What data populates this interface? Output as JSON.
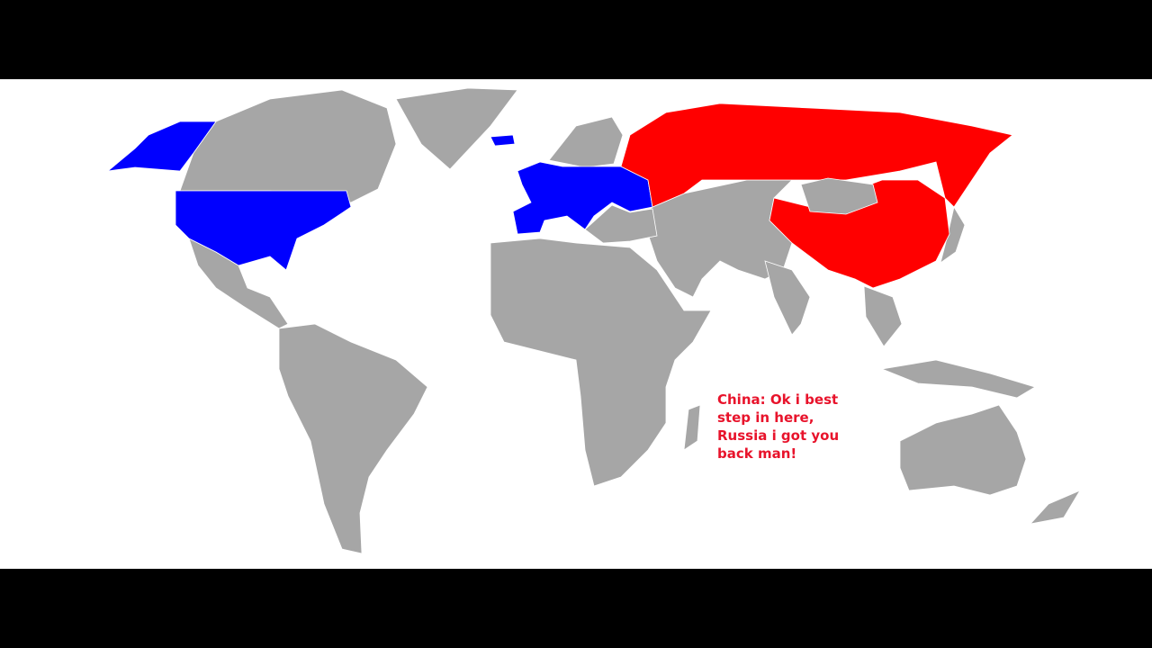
{
  "caption": "China: Ok i best\nstep in here,\nRussia i got you\nback man!",
  "colors": {
    "neutral": "#a6a6a6",
    "allied_blue": "#0000ff",
    "opposing_red": "#ff0000",
    "caption_text": "#e8132b",
    "letterbox": "#000000",
    "ocean": "#ffffff"
  },
  "regions": {
    "blue": [
      "USA",
      "Alaska",
      "Iceland",
      "Western and Central Europe"
    ],
    "red": [
      "Russia",
      "China"
    ]
  }
}
